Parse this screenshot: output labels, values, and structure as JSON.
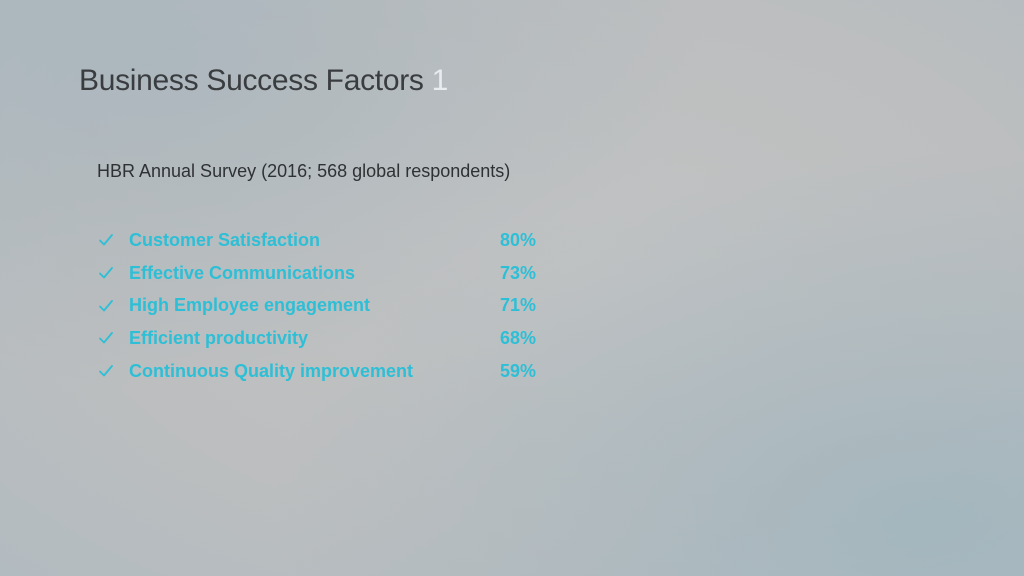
{
  "slide": {
    "title": "Business Success Factors",
    "title_superscript": "1",
    "subtitle": "HBR Annual Survey (2016; 568 global respondents)"
  },
  "factors": [
    {
      "label": "Customer Satisfaction",
      "value": "80%"
    },
    {
      "label": "Effective Communications",
      "value": "73%"
    },
    {
      "label": "High Employee engagement",
      "value": "71%"
    },
    {
      "label": "Efficient productivity",
      "value": "68%"
    },
    {
      "label": "Continuous Quality improvement",
      "value": "59%"
    }
  ],
  "icons": {
    "bullet": "check-icon"
  },
  "colors": {
    "accent": "#2dbfd6",
    "title_text": "#3a3d40",
    "body_text": "#2f3234"
  }
}
